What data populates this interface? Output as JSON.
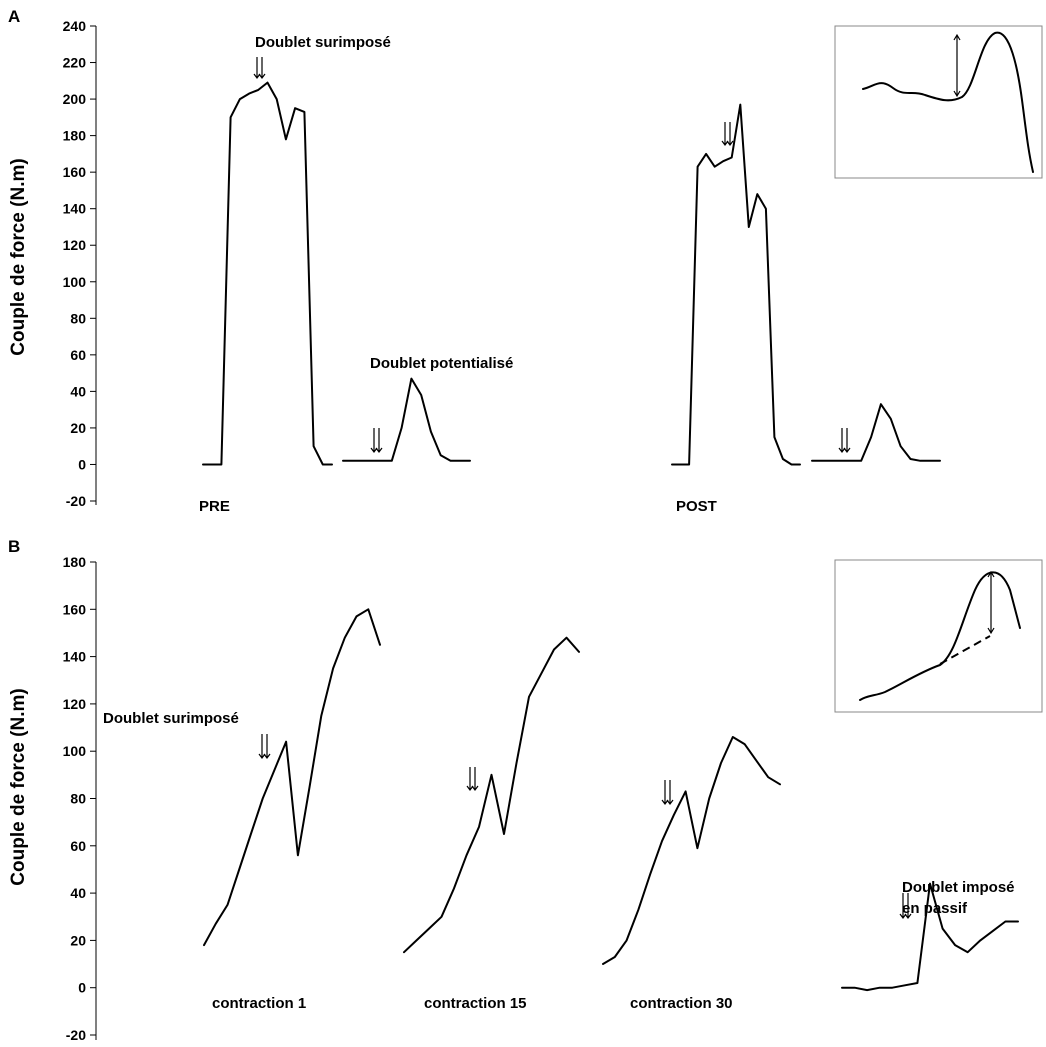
{
  "chart_data": [
    {
      "type": "line",
      "panel_label": "A",
      "ylabel": "Couple de force (N.m)",
      "ylim": [
        -20,
        240
      ],
      "yticks": [
        -20,
        0,
        20,
        40,
        60,
        80,
        100,
        120,
        140,
        160,
        180,
        200,
        220,
        240
      ],
      "annotations": [
        "Doublet surimposé",
        "Doublet potentialisé"
      ],
      "group_labels": [
        "PRE",
        "POST"
      ],
      "series": [
        {
          "values": [
            0,
            0,
            0,
            190,
            200,
            203,
            205,
            209,
            200,
            178,
            195,
            193,
            10,
            0,
            0
          ]
        },
        {
          "values": [
            2,
            2,
            2,
            2,
            2,
            2,
            20,
            47,
            38,
            18,
            5,
            2,
            2,
            2
          ]
        },
        {
          "values": [
            0,
            0,
            0,
            163,
            170,
            163,
            166,
            168,
            197,
            130,
            148,
            140,
            15,
            3,
            0,
            0
          ]
        },
        {
          "values": [
            2,
            2,
            2,
            2,
            2,
            2,
            15,
            33,
            25,
            10,
            3,
            2,
            2,
            2
          ]
        }
      ]
    },
    {
      "type": "line",
      "panel_label": "B",
      "ylabel": "Couple de force (N.m)",
      "ylim": [
        -20,
        180
      ],
      "yticks": [
        -20,
        0,
        20,
        40,
        60,
        80,
        100,
        120,
        140,
        160,
        180
      ],
      "annotations": [
        "Doublet surimposé",
        "Doublet imposé",
        "en passif"
      ],
      "group_labels": [
        "contraction 1",
        "contraction 15",
        "contraction 30"
      ],
      "series": [
        {
          "values": [
            18,
            27,
            35,
            50,
            65,
            80,
            92,
            104,
            56,
            85,
            115,
            135,
            148,
            157,
            160,
            145
          ]
        },
        {
          "values": [
            15,
            20,
            25,
            30,
            42,
            56,
            68,
            90,
            65,
            95,
            123,
            133,
            143,
            148,
            142
          ]
        },
        {
          "values": [
            10,
            13,
            20,
            33,
            48,
            62,
            73,
            83,
            59,
            80,
            95,
            106,
            103,
            96,
            89,
            86
          ]
        },
        {
          "values": [
            0,
            0,
            -1,
            0,
            0,
            1,
            2,
            44,
            25,
            18,
            15,
            20,
            24,
            28,
            28
          ]
        }
      ]
    }
  ],
  "colors": {
    "trace": "#000000",
    "background": "#ffffff"
  }
}
